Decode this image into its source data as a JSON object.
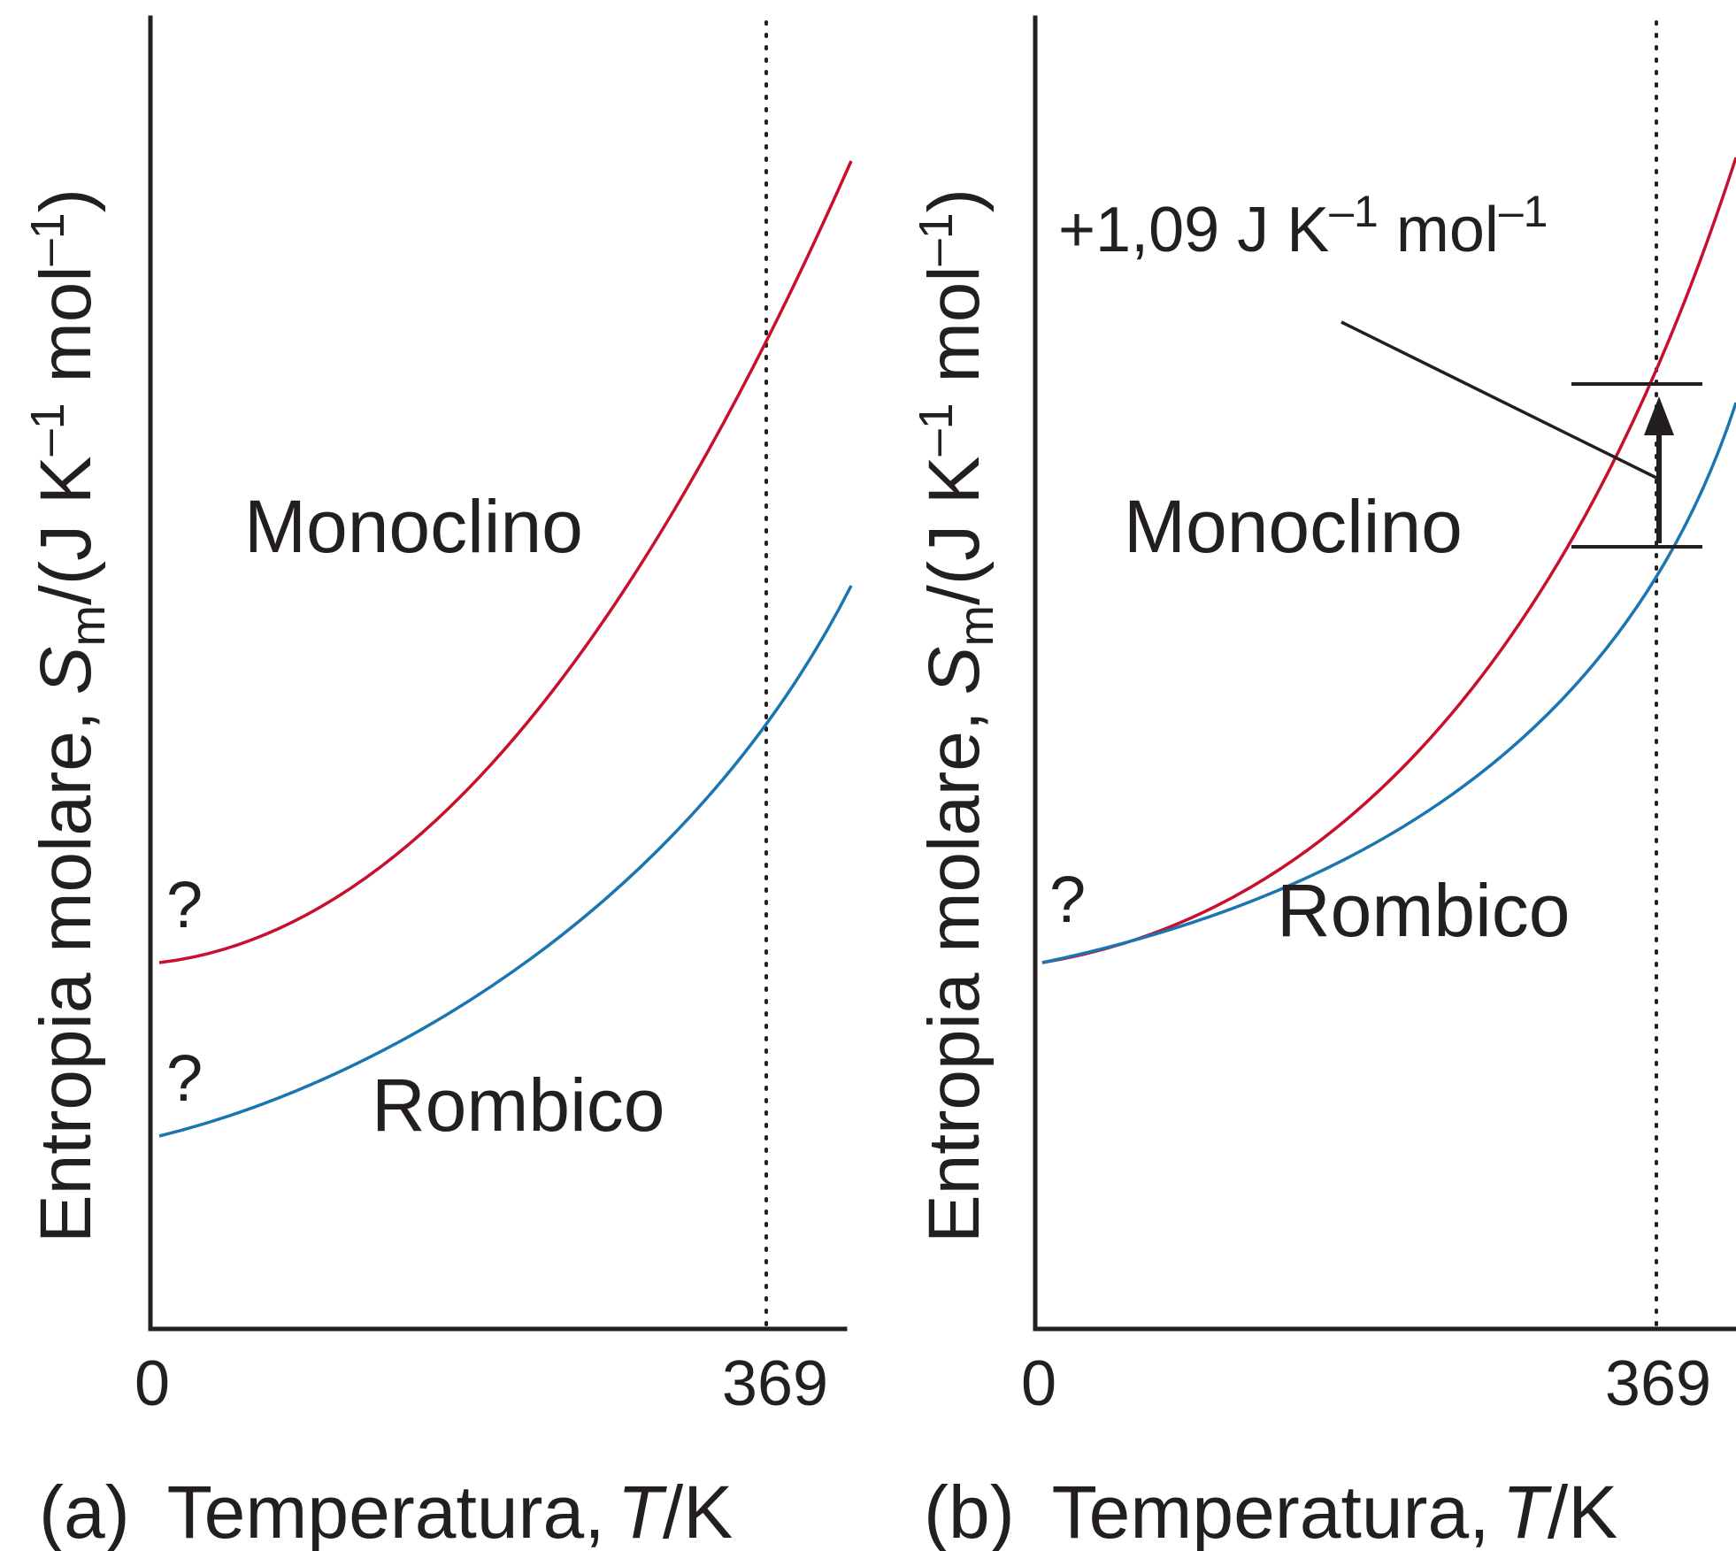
{
  "colors": {
    "monoclinic": "#c8102e",
    "rhombic": "#1a75b0",
    "axis": "#231f20"
  },
  "chart_data": [
    {
      "type": "line",
      "panel_label": "(a)",
      "xlabel": "Temperatura,",
      "xlabel_symbol": "T",
      "xlabel_unit": "/K",
      "ylabel": "Entropia molare,",
      "ylabel_symbol": "S",
      "ylabel_subscript": "m",
      "ylabel_unit": "/(J K",
      "ylabel_exp": "–1",
      "ylabel_unit2": " mol",
      "ylabel_exp2": "–1",
      "ylabel_close": ")",
      "x_ticks": [
        "0",
        "369"
      ],
      "x_range": [
        0,
        420
      ],
      "y_range": [
        0,
        1
      ],
      "reference_line": {
        "x": 369,
        "style": "dotted"
      },
      "series": [
        {
          "name": "Monoclino",
          "color": "#c8102e",
          "x": [
            0,
            60,
            120,
            180,
            240,
            300,
            369,
            420
          ],
          "y": [
            0.28,
            0.32,
            0.38,
            0.45,
            0.54,
            0.64,
            0.78,
            0.89
          ],
          "start_label": "?"
        },
        {
          "name": "Rombico",
          "color": "#1a75b0",
          "x": [
            0,
            60,
            120,
            180,
            240,
            300,
            369,
            420
          ],
          "y": [
            0.15,
            0.18,
            0.22,
            0.28,
            0.35,
            0.43,
            0.54,
            0.63
          ],
          "start_label": "?"
        }
      ]
    },
    {
      "type": "line",
      "panel_label": "(b)",
      "xlabel": "Temperatura,",
      "xlabel_symbol": "T",
      "xlabel_unit": "/K",
      "ylabel": "Entropia molare,",
      "ylabel_symbol": "S",
      "ylabel_subscript": "m",
      "ylabel_unit": "/(J K",
      "ylabel_exp": "–1",
      "ylabel_unit2": " mol",
      "ylabel_exp2": "–1",
      "ylabel_close": ")",
      "x_ticks": [
        "0",
        "369"
      ],
      "x_range": [
        0,
        420
      ],
      "y_range": [
        0,
        1
      ],
      "reference_line": {
        "x": 369,
        "style": "dotted"
      },
      "annotation": {
        "text": "+1,09 J K",
        "exp": "–1",
        "text2": " mol",
        "exp2": "–1"
      },
      "series": [
        {
          "name": "Monoclino",
          "color": "#c8102e",
          "x": [
            0,
            60,
            120,
            180,
            240,
            300,
            369,
            420
          ],
          "y": [
            0.28,
            0.33,
            0.4,
            0.48,
            0.57,
            0.67,
            0.78,
            0.89
          ],
          "start_label": "?"
        },
        {
          "name": "Rombico",
          "color": "#1a75b0",
          "x": [
            0,
            60,
            120,
            180,
            240,
            300,
            369,
            420
          ],
          "y": [
            0.28,
            0.32,
            0.37,
            0.43,
            0.5,
            0.57,
            0.66,
            0.75
          ]
        }
      ]
    }
  ]
}
